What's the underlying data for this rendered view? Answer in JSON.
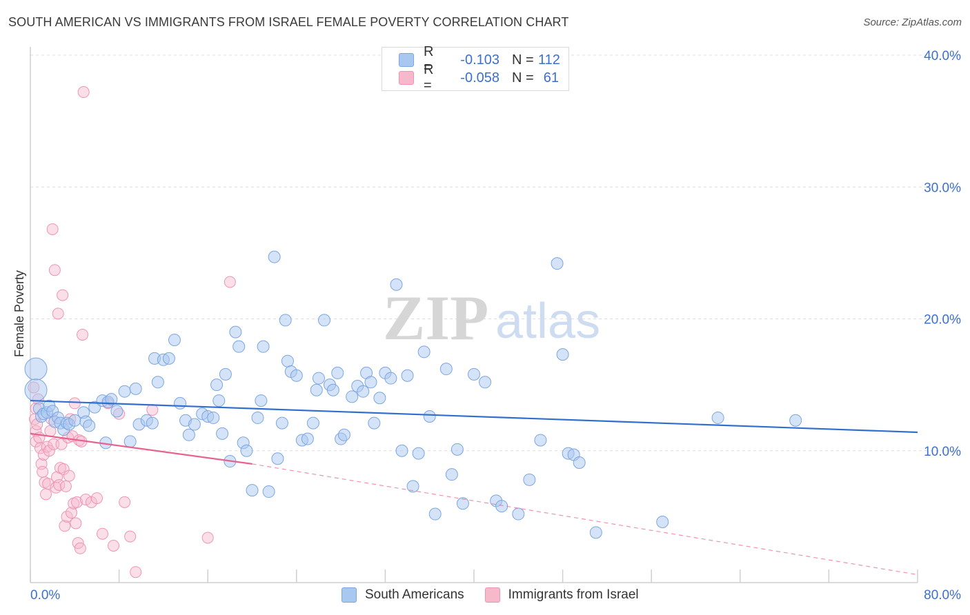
{
  "header": {
    "title": "SOUTH AMERICAN VS IMMIGRANTS FROM ISRAEL FEMALE POVERTY CORRELATION CHART",
    "source": "Source: ZipAtlas.com"
  },
  "watermark": {
    "zip": "ZIP",
    "atlas": "atlas"
  },
  "legend_top": [
    {
      "r_label": "R =",
      "r_value": "-0.103",
      "n_label": "N =",
      "n_value": "112"
    },
    {
      "r_label": "R =",
      "r_value": "-0.058",
      "n_label": "N =",
      "n_value": "61"
    }
  ],
  "legend_bottom": [
    "South Americans",
    "Immigrants from Israel"
  ],
  "colors": {
    "blue_fill": "#a9c8f0",
    "blue_stroke": "#7aa6e3",
    "blue_line": "#2f6fcf",
    "pink_fill": "#f7b8cc",
    "pink_stroke": "#ee94b2",
    "pink_line": "#e8628f",
    "axis_text": "#3b6fd1",
    "grid": "#dedede"
  },
  "chart_data": {
    "type": "scatter",
    "title": "SOUTH AMERICAN VS IMMIGRANTS FROM ISRAEL FEMALE POVERTY CORRELATION CHART",
    "xlabel": "",
    "ylabel": "Female Poverty",
    "xlim": [
      0,
      80
    ],
    "ylim": [
      0,
      40
    ],
    "x_tick_labels": [
      "0.0%",
      "80.0%"
    ],
    "y_ticks": [
      10,
      20,
      30,
      40
    ],
    "y_tick_labels": [
      "10.0%",
      "20.0%",
      "30.0%",
      "40.0%"
    ],
    "grid": true,
    "legend_position": "top-center",
    "series": [
      {
        "name": "South Americans",
        "r": -0.103,
        "n": 112,
        "trend": {
          "x": [
            0,
            80
          ],
          "y": [
            13.8,
            11.4
          ]
        },
        "points": [
          [
            0.5,
            16.2
          ],
          [
            0.5,
            14.6
          ],
          [
            0.8,
            13.2
          ],
          [
            1.0,
            12.6
          ],
          [
            1.2,
            12.8
          ],
          [
            1.5,
            12.9
          ],
          [
            1.7,
            13.4
          ],
          [
            2.0,
            13.0
          ],
          [
            2.2,
            12.2
          ],
          [
            2.5,
            12.5
          ],
          [
            2.7,
            12.1
          ],
          [
            3.0,
            11.6
          ],
          [
            3.3,
            12.1
          ],
          [
            3.5,
            12.0
          ],
          [
            4.0,
            12.3
          ],
          [
            4.8,
            12.9
          ],
          [
            5.0,
            12.2
          ],
          [
            5.3,
            11.9
          ],
          [
            5.8,
            13.3
          ],
          [
            6.5,
            13.8
          ],
          [
            6.8,
            10.6
          ],
          [
            7.0,
            13.7
          ],
          [
            7.3,
            13.9
          ],
          [
            7.8,
            13.0
          ],
          [
            8.5,
            14.5
          ],
          [
            9.0,
            10.7
          ],
          [
            9.5,
            14.7
          ],
          [
            9.8,
            12.0
          ],
          [
            10.5,
            12.3
          ],
          [
            11.0,
            12.1
          ],
          [
            11.2,
            17.0
          ],
          [
            11.5,
            15.2
          ],
          [
            12.0,
            16.9
          ],
          [
            12.5,
            17.0
          ],
          [
            13.0,
            18.4
          ],
          [
            13.5,
            13.6
          ],
          [
            14.0,
            12.3
          ],
          [
            14.3,
            11.2
          ],
          [
            14.8,
            12.0
          ],
          [
            15.5,
            12.8
          ],
          [
            16.0,
            12.6
          ],
          [
            16.5,
            12.5
          ],
          [
            16.8,
            15.0
          ],
          [
            17.0,
            13.8
          ],
          [
            17.3,
            11.3
          ],
          [
            17.6,
            15.8
          ],
          [
            18.0,
            9.2
          ],
          [
            18.5,
            19.0
          ],
          [
            18.8,
            17.9
          ],
          [
            19.2,
            10.6
          ],
          [
            19.5,
            10.0
          ],
          [
            20.0,
            7.0
          ],
          [
            20.5,
            12.5
          ],
          [
            20.8,
            13.8
          ],
          [
            21.0,
            17.9
          ],
          [
            21.5,
            6.9
          ],
          [
            22.0,
            24.7
          ],
          [
            22.3,
            9.4
          ],
          [
            22.7,
            12.1
          ],
          [
            23.0,
            19.9
          ],
          [
            23.2,
            16.8
          ],
          [
            23.5,
            16.0
          ],
          [
            24.0,
            15.7
          ],
          [
            24.5,
            10.8
          ],
          [
            25.0,
            10.9
          ],
          [
            25.5,
            12.1
          ],
          [
            25.8,
            14.6
          ],
          [
            26.0,
            15.5
          ],
          [
            26.5,
            19.9
          ],
          [
            27.0,
            15.0
          ],
          [
            27.3,
            14.6
          ],
          [
            27.7,
            15.9
          ],
          [
            28.0,
            10.9
          ],
          [
            28.3,
            11.2
          ],
          [
            29.0,
            14.1
          ],
          [
            29.5,
            14.9
          ],
          [
            30.0,
            14.5
          ],
          [
            30.3,
            15.9
          ],
          [
            30.7,
            15.2
          ],
          [
            31.0,
            12.1
          ],
          [
            31.5,
            14.0
          ],
          [
            32.0,
            15.9
          ],
          [
            32.5,
            15.5
          ],
          [
            33.0,
            22.6
          ],
          [
            33.5,
            10.0
          ],
          [
            34.0,
            15.7
          ],
          [
            34.5,
            7.3
          ],
          [
            35.0,
            9.8
          ],
          [
            35.5,
            17.5
          ],
          [
            36.0,
            12.6
          ],
          [
            36.5,
            5.2
          ],
          [
            37.5,
            16.2
          ],
          [
            38.0,
            8.2
          ],
          [
            38.5,
            10.1
          ],
          [
            39.0,
            6.0
          ],
          [
            40.0,
            15.8
          ],
          [
            41.0,
            15.2
          ],
          [
            42.0,
            6.2
          ],
          [
            42.5,
            5.8
          ],
          [
            44.0,
            5.2
          ],
          [
            45.0,
            7.8
          ],
          [
            46.0,
            10.8
          ],
          [
            47.5,
            24.2
          ],
          [
            48.0,
            17.3
          ],
          [
            48.5,
            9.8
          ],
          [
            49.0,
            9.7
          ],
          [
            49.5,
            9.1
          ],
          [
            51.0,
            3.8
          ],
          [
            57.0,
            4.6
          ],
          [
            62.0,
            12.5
          ],
          [
            69.0,
            12.3
          ]
        ],
        "large_points": [
          [
            0.5,
            16.2
          ],
          [
            0.5,
            14.6
          ]
        ]
      },
      {
        "name": "Immigrants from Israel",
        "r": -0.058,
        "n": 61,
        "trend": {
          "x": [
            0,
            20
          ],
          "y": [
            11.3,
            9.0
          ]
        },
        "trend_extension": {
          "x": [
            20,
            80
          ],
          "y": [
            9.0,
            0.6
          ]
        },
        "points": [
          [
            0.3,
            14.8
          ],
          [
            0.4,
            12.4
          ],
          [
            0.5,
            11.5
          ],
          [
            0.5,
            10.7
          ],
          [
            0.6,
            12.0
          ],
          [
            0.7,
            13.9
          ],
          [
            0.8,
            11.0
          ],
          [
            0.9,
            10.2
          ],
          [
            1.0,
            9.0
          ],
          [
            1.1,
            8.4
          ],
          [
            1.2,
            9.7
          ],
          [
            1.3,
            7.6
          ],
          [
            1.4,
            6.7
          ],
          [
            1.5,
            10.3
          ],
          [
            1.6,
            7.5
          ],
          [
            1.7,
            10.0
          ],
          [
            1.8,
            11.5
          ],
          [
            1.9,
            12.4
          ],
          [
            2.0,
            26.8
          ],
          [
            2.1,
            10.5
          ],
          [
            2.2,
            23.7
          ],
          [
            2.3,
            7.2
          ],
          [
            2.4,
            8.0
          ],
          [
            2.5,
            20.4
          ],
          [
            2.6,
            7.4
          ],
          [
            2.7,
            8.7
          ],
          [
            2.8,
            10.5
          ],
          [
            2.9,
            21.8
          ],
          [
            3.0,
            8.6
          ],
          [
            3.1,
            4.3
          ],
          [
            3.2,
            7.3
          ],
          [
            3.3,
            5.0
          ],
          [
            3.4,
            11.0
          ],
          [
            3.5,
            8.1
          ],
          [
            3.6,
            12.4
          ],
          [
            3.7,
            5.3
          ],
          [
            3.8,
            11.1
          ],
          [
            3.9,
            6.0
          ],
          [
            4.0,
            13.6
          ],
          [
            4.1,
            4.5
          ],
          [
            4.2,
            6.1
          ],
          [
            4.3,
            3.0
          ],
          [
            4.4,
            10.8
          ],
          [
            4.5,
            2.6
          ],
          [
            4.6,
            10.7
          ],
          [
            4.7,
            18.8
          ],
          [
            4.8,
            37.2
          ],
          [
            5.0,
            6.3
          ],
          [
            5.5,
            6.1
          ],
          [
            6.0,
            6.4
          ],
          [
            6.5,
            3.7
          ],
          [
            7.0,
            13.6
          ],
          [
            7.5,
            2.8
          ],
          [
            8.0,
            12.8
          ],
          [
            8.5,
            6.1
          ],
          [
            9.0,
            3.5
          ],
          [
            9.5,
            0.8
          ],
          [
            11.0,
            13.1
          ],
          [
            16.0,
            3.4
          ],
          [
            18.0,
            22.8
          ],
          [
            0.5,
            13.2
          ]
        ]
      }
    ]
  }
}
